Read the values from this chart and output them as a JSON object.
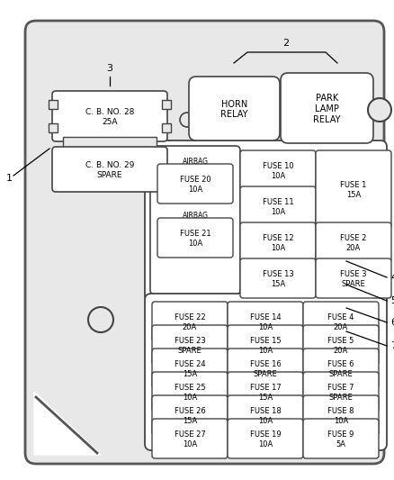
{
  "bg_color": "#ffffff",
  "panel_bg": "#ececec",
  "panel_border": "#555555",
  "box_bg": "#ffffff",
  "box_border": "#444444",
  "text_color": "#000000",
  "fuses_bottom": [
    {
      "label": "FUSE 22\n20A",
      "col": 0,
      "row": 0
    },
    {
      "label": "FUSE 14\n10A",
      "col": 1,
      "row": 0
    },
    {
      "label": "FUSE 4\n20A",
      "col": 2,
      "row": 0
    },
    {
      "label": "FUSE 23\nSPARE",
      "col": 0,
      "row": 1
    },
    {
      "label": "FUSE 15\n10A",
      "col": 1,
      "row": 1
    },
    {
      "label": "FUSE 5\n20A",
      "col": 2,
      "row": 1
    },
    {
      "label": "FUSE 24\n15A",
      "col": 0,
      "row": 2
    },
    {
      "label": "FUSE 16\nSPARE",
      "col": 1,
      "row": 2
    },
    {
      "label": "FUSE 6\nSPARE",
      "col": 2,
      "row": 2
    },
    {
      "label": "FUSE 25\n10A",
      "col": 0,
      "row": 3
    },
    {
      "label": "FUSE 17\n15A",
      "col": 1,
      "row": 3
    },
    {
      "label": "FUSE 7\nSPARE",
      "col": 2,
      "row": 3
    },
    {
      "label": "FUSE 26\n15A",
      "col": 0,
      "row": 4
    },
    {
      "label": "FUSE 18\n10A",
      "col": 1,
      "row": 4
    },
    {
      "label": "FUSE 8\n10A",
      "col": 2,
      "row": 4
    },
    {
      "label": "FUSE 27\n10A",
      "col": 0,
      "row": 5
    },
    {
      "label": "FUSE 19\n10A",
      "col": 1,
      "row": 5
    },
    {
      "label": "FUSE 9\n5A",
      "col": 2,
      "row": 5
    }
  ]
}
